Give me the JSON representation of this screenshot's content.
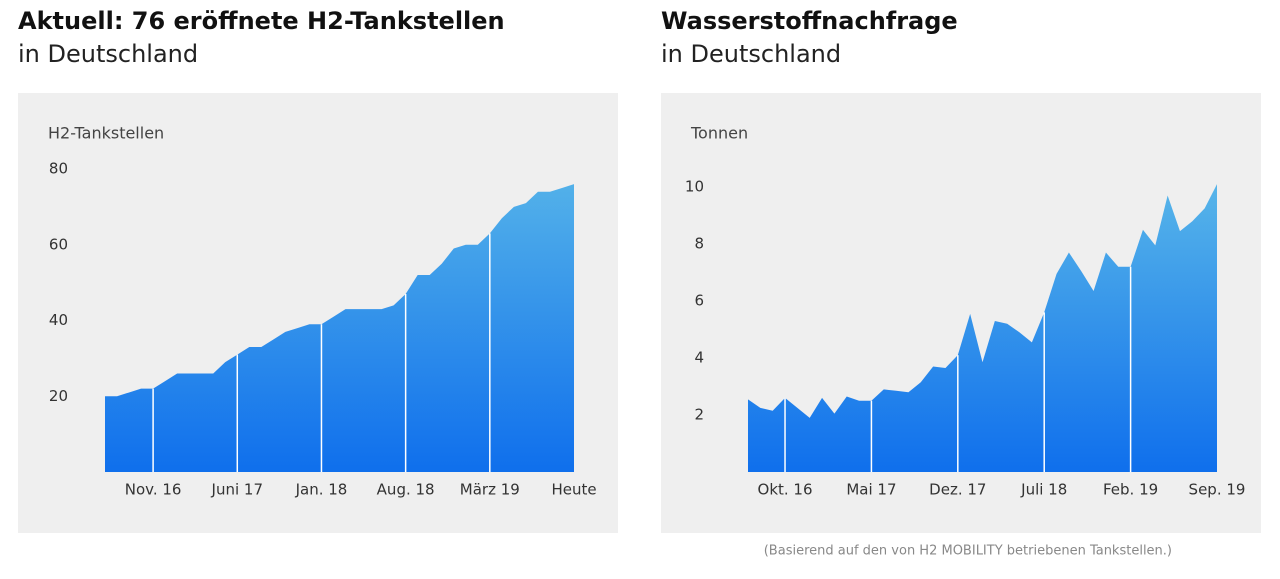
{
  "chart_data": [
    {
      "type": "area",
      "title": "Aktuell: 76 eröffnete H2-Tankstellen",
      "subtitle": "in Deutschland",
      "y_label": "H2-Tankstellen",
      "categories": [
        null,
        null,
        null,
        null,
        "Nov. 16",
        null,
        null,
        null,
        null,
        null,
        null,
        "Juni 17",
        null,
        null,
        null,
        null,
        null,
        null,
        "Jan. 18",
        null,
        null,
        null,
        null,
        null,
        null,
        "Aug. 18",
        null,
        null,
        null,
        null,
        null,
        null,
        "März 19",
        null,
        null,
        null,
        null,
        null,
        null,
        "Heute"
      ],
      "values": [
        20,
        20,
        21,
        22,
        22,
        24,
        26,
        26,
        26,
        26,
        29,
        31,
        33,
        33,
        35,
        37,
        38,
        39,
        39,
        41,
        43,
        43,
        43,
        43,
        44,
        47,
        52,
        52,
        55,
        59,
        60,
        60,
        63,
        67,
        70,
        71,
        74,
        74,
        75,
        76
      ],
      "ylim": [
        0,
        80
      ],
      "yticks": [
        20,
        40,
        60,
        80
      ],
      "color": [
        "#56b4e9",
        "#0f6fec"
      ]
    },
    {
      "type": "area",
      "title": "Wasserstoffnachfrage",
      "subtitle": "in Deutschland",
      "y_label": "Tonnen",
      "categories": [
        null,
        null,
        null,
        "Okt. 16",
        null,
        null,
        null,
        null,
        null,
        null,
        "Mai 17",
        null,
        null,
        null,
        null,
        null,
        null,
        "Dez. 17",
        null,
        null,
        null,
        null,
        null,
        null,
        "Juli 18",
        null,
        null,
        null,
        null,
        null,
        null,
        "Feb. 19",
        null,
        null,
        null,
        null,
        null,
        null,
        "Sep. 19"
      ],
      "values": [
        2.55,
        2.25,
        2.15,
        2.6,
        2.25,
        1.9,
        2.6,
        2.05,
        2.65,
        2.5,
        2.5,
        2.9,
        2.85,
        2.8,
        3.15,
        3.7,
        3.65,
        4.1,
        5.55,
        3.85,
        5.3,
        5.2,
        4.9,
        4.55,
        5.6,
        6.95,
        7.7,
        7.05,
        6.35,
        7.7,
        7.2,
        7.2,
        8.5,
        7.95,
        9.7,
        8.45,
        8.8,
        9.25,
        10.1
      ],
      "ylim": [
        0,
        10
      ],
      "yticks": [
        2,
        4,
        6,
        8,
        10
      ],
      "color": [
        "#56b4e9",
        "#0f6fec"
      ]
    }
  ],
  "footnote": "(Basierend auf den von H2 MOBILITY betriebenen Tankstellen.)"
}
